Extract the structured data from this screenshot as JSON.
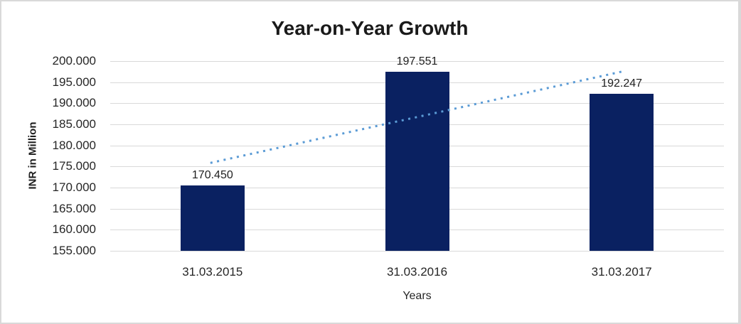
{
  "window": {
    "background": "#ffffff",
    "border_color": "#d9d9d9"
  },
  "chart_data": {
    "type": "bar",
    "title": "Year-on-Year Growth",
    "xlabel": "Years",
    "ylabel": "INR in Million",
    "categories": [
      "31.03.2015",
      "31.03.2016",
      "31.03.2017"
    ],
    "values": [
      170.45,
      197.551,
      192.247
    ],
    "data_labels": [
      "170.450",
      "197.551",
      "192.247"
    ],
    "ylim": [
      155,
      200
    ],
    "ytick_values": [
      200,
      195,
      190,
      185,
      180,
      175,
      170,
      165,
      160,
      155
    ],
    "ytick_labels": [
      "200.000",
      "195.000",
      "190.000",
      "185.000",
      "180.000",
      "175.000",
      "170.000",
      "165.000",
      "160.000",
      "155.000"
    ],
    "grid": true,
    "legend_position": "none",
    "bar_color": "#0a2161",
    "gridline_color": "#d9d9d9",
    "text_color": "#262626",
    "trendline": {
      "type": "linear",
      "style": "dotted",
      "color": "#5b9bd5"
    }
  }
}
